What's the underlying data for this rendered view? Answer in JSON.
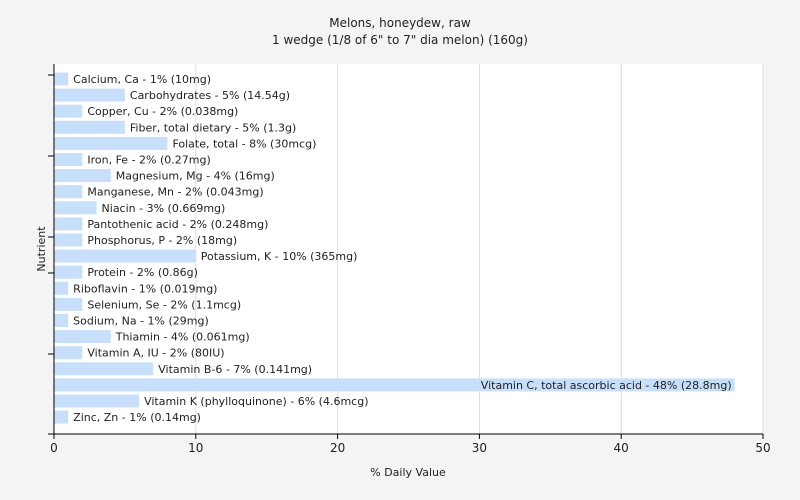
{
  "chart_data": {
    "type": "bar",
    "orientation": "horizontal",
    "title": "Melons, honeydew, raw",
    "subtitle": "1 wedge (1/8 of 6\" to 7\" dia melon) (160g)",
    "xlabel": "% Daily Value",
    "ylabel": "Nutrient",
    "xlim": [
      0,
      50
    ],
    "xticks": [
      "0",
      "10",
      "20",
      "30",
      "40",
      "50"
    ],
    "grid": true,
    "bar_color": "#c7dffb",
    "categories": [
      "Calcium, Ca",
      "Carbohydrates",
      "Copper, Cu",
      "Fiber, total dietary",
      "Folate, total",
      "Iron, Fe",
      "Magnesium, Mg",
      "Manganese, Mn",
      "Niacin",
      "Pantothenic acid",
      "Phosphorus, P",
      "Potassium, K",
      "Protein",
      "Riboflavin",
      "Selenium, Se",
      "Sodium, Na",
      "Thiamin",
      "Vitamin A, IU",
      "Vitamin B-6",
      "Vitamin C, total ascorbic acid",
      "Vitamin K (phylloquinone)",
      "Zinc, Zn"
    ],
    "values": [
      1,
      5,
      2,
      5,
      8,
      2,
      4,
      2,
      3,
      2,
      2,
      10,
      2,
      1,
      2,
      1,
      4,
      2,
      7,
      48,
      6,
      1
    ],
    "labels": [
      "Calcium, Ca - 1% (10mg)",
      "Carbohydrates - 5% (14.54g)",
      "Copper, Cu - 2% (0.038mg)",
      "Fiber, total dietary - 5% (1.3g)",
      "Folate, total - 8% (30mcg)",
      "Iron, Fe - 2% (0.27mg)",
      "Magnesium, Mg - 4% (16mg)",
      "Manganese, Mn - 2% (0.043mg)",
      "Niacin - 3% (0.669mg)",
      "Pantothenic acid - 2% (0.248mg)",
      "Phosphorus, P - 2% (18mg)",
      "Potassium, K - 10% (365mg)",
      "Protein - 2% (0.86g)",
      "Riboflavin - 1% (0.019mg)",
      "Selenium, Se - 2% (1.1mcg)",
      "Sodium, Na - 1% (29mg)",
      "Thiamin - 4% (0.061mg)",
      "Vitamin A, IU - 2% (80IU)",
      "Vitamin B-6 - 7% (0.141mg)",
      "Vitamin C, total ascorbic acid - 48% (28.8mg)",
      "Vitamin K (phylloquinone) - 6% (4.6mcg)",
      "Zinc, Zn - 1% (0.14mg)"
    ]
  }
}
